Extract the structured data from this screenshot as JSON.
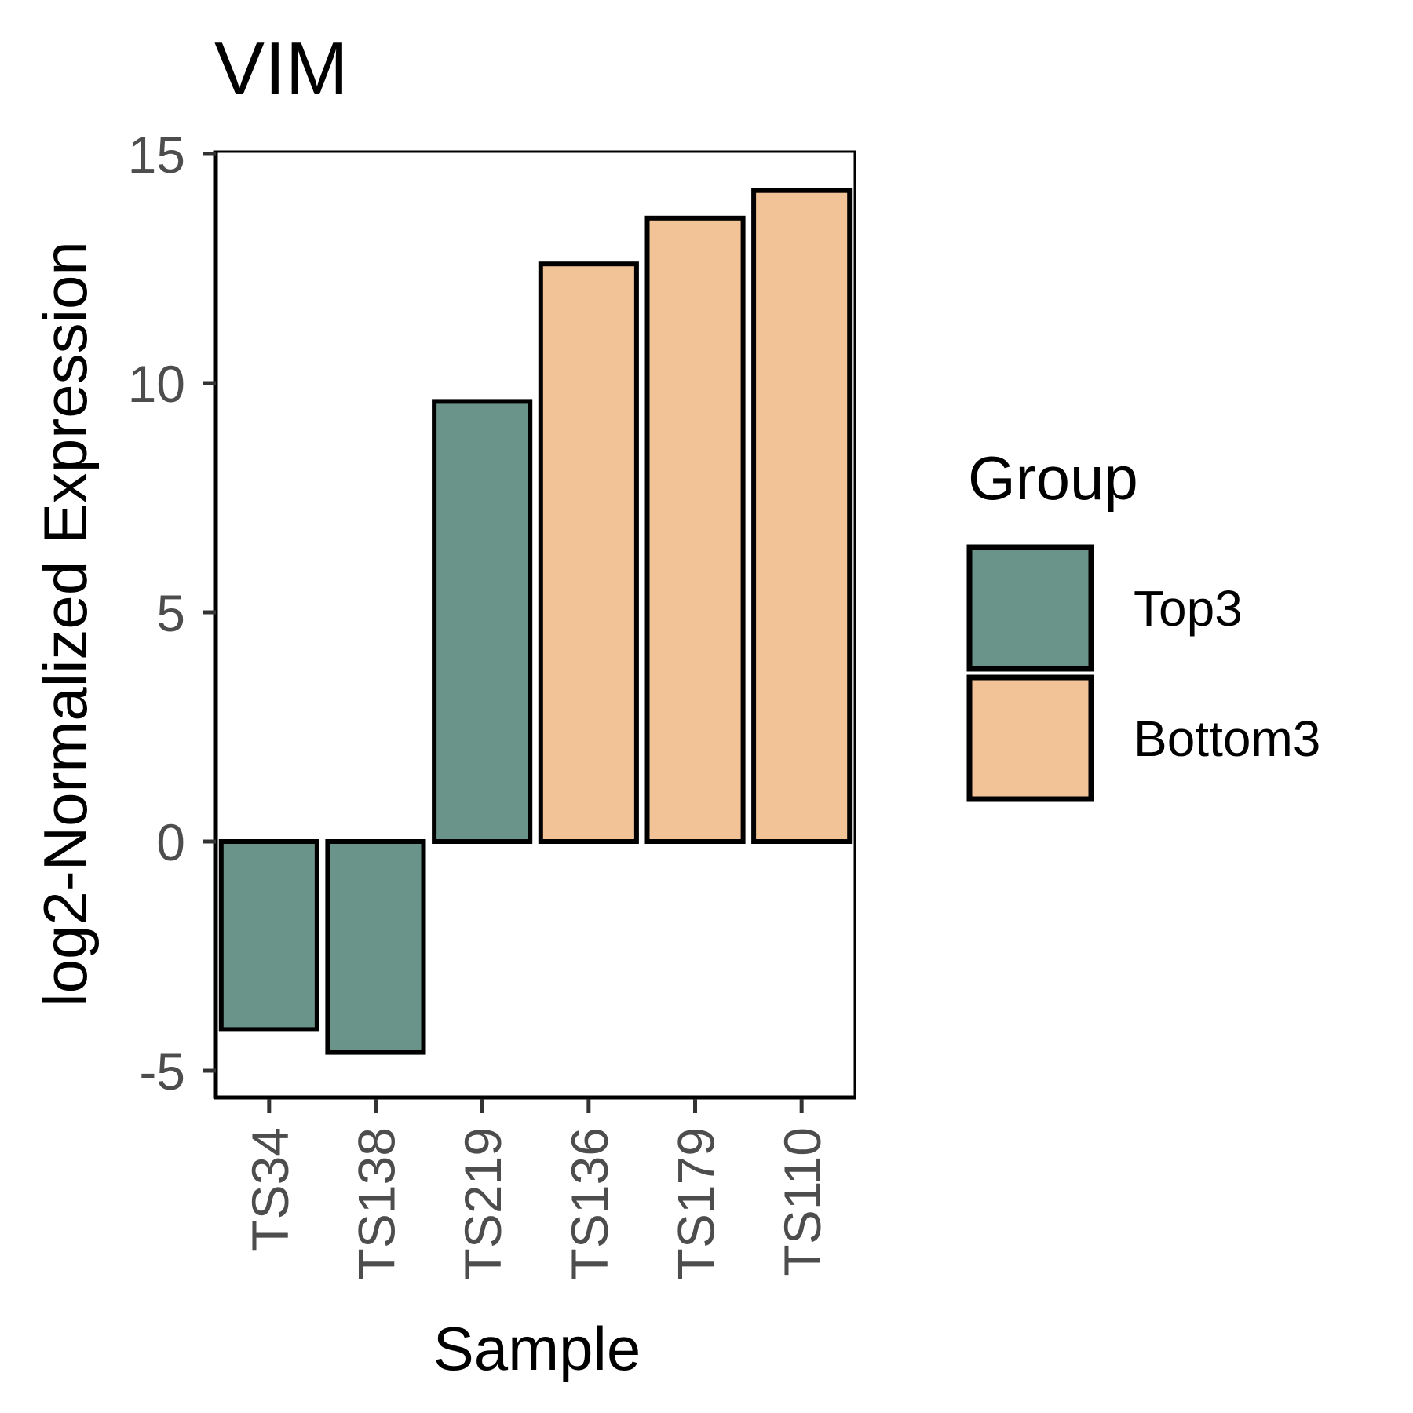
{
  "chart_data": {
    "type": "bar",
    "title": "VIM",
    "xlabel": "Sample",
    "ylabel": "log2-Normalized Expression",
    "categories": [
      "TS34",
      "TS138",
      "TS219",
      "TS136",
      "TS179",
      "TS110"
    ],
    "values": [
      -4.1,
      -4.6,
      9.6,
      12.6,
      13.6,
      14.2
    ],
    "groups": [
      "Top3",
      "Top3",
      "Top3",
      "Bottom3",
      "Bottom3",
      "Bottom3"
    ],
    "ylim": [
      -5.5,
      15.2
    ],
    "yticks": [
      -5,
      0,
      5,
      10,
      15
    ],
    "ytick_labels": [
      "-5",
      "0",
      "5",
      "10",
      "15"
    ],
    "grid": false,
    "legend": {
      "title": "Group",
      "placement": "right",
      "entries": [
        {
          "label": "Top3",
          "color": "#6a9489"
        },
        {
          "label": "Bottom3",
          "color": "#f3c398"
        }
      ]
    }
  }
}
